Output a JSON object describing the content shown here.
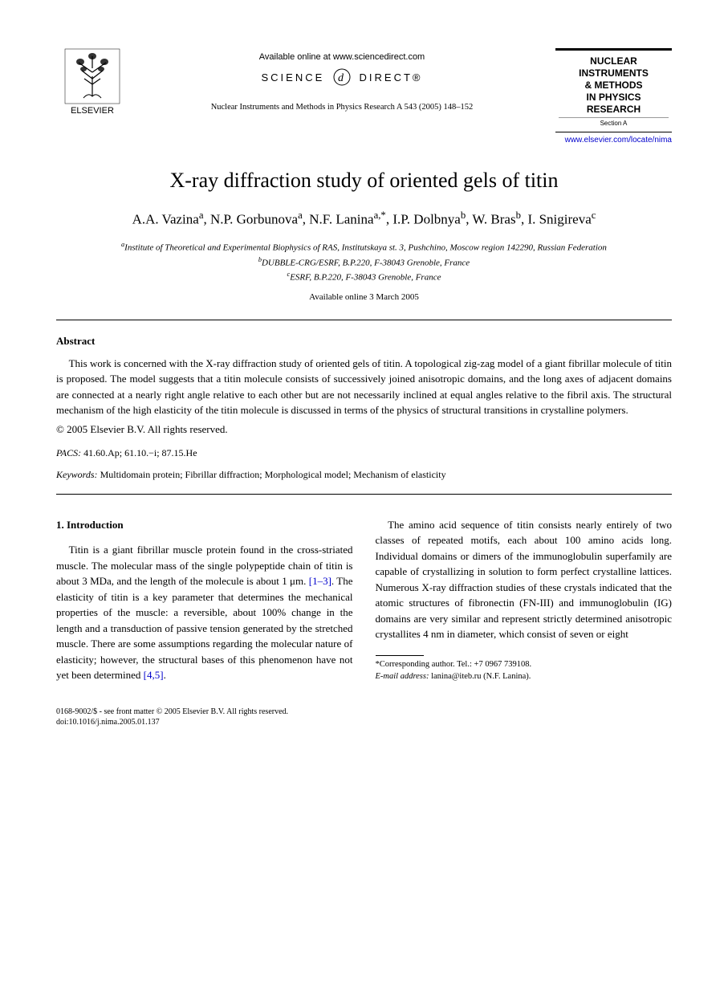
{
  "header": {
    "publisher_name": "ELSEVIER",
    "available_online": "Available online at www.sciencedirect.com",
    "science_direct_left": "SCIENCE",
    "science_direct_right": "DIRECT®",
    "journal_ref": "Nuclear Instruments and Methods in Physics Research A 543 (2005) 148–152",
    "badge_line1": "NUCLEAR",
    "badge_line2": "INSTRUMENTS",
    "badge_line3": "& METHODS",
    "badge_line4": "IN PHYSICS",
    "badge_line5": "RESEARCH",
    "badge_section": "Section A",
    "journal_link": "www.elsevier.com/locate/nima"
  },
  "paper": {
    "title": "X-ray diffraction study of oriented gels of titin",
    "authors_html": "A.A. Vazina<sup>a</sup>, N.P. Gorbunova<sup>a</sup>, N.F. Lanina<sup>a,*</sup>, I.P. Dolbnya<sup>b</sup>, W. Bras<sup>b</sup>, I. Snigireva<sup>c</sup>",
    "affil_a": "Institute of Theoretical and Experimental Biophysics of RAS, Institutskaya st. 3, Pushchino, Moscow region 142290, Russian Federation",
    "affil_b": "DUBBLE-CRG/ESRF, B.P.220, F-38043 Grenoble, France",
    "affil_c": "ESRF, B.P.220, F-38043 Grenoble, France",
    "pub_date": "Available online 3 March 2005"
  },
  "abstract": {
    "heading": "Abstract",
    "text": "This work is concerned with the X-ray diffraction study of oriented gels of titin. A topological zig-zag model of a giant fibrillar molecule of titin is proposed. The model suggests that a titin molecule consists of successively joined anisotropic domains, and the long axes of adjacent domains are connected at a nearly right angle relative to each other but are not necessarily inclined at equal angles relative to the fibril axis. The structural mechanism of the high elasticity of the titin molecule is discussed in terms of the physics of structural transitions in crystalline polymers.",
    "copyright": "© 2005 Elsevier B.V. All rights reserved.",
    "pacs_label": "PACS:",
    "pacs": " 41.60.Ap; 61.10.−i; 87.15.He",
    "keywords_label": "Keywords:",
    "keywords": " Multidomain protein; Fibrillar diffraction; Morphological model; Mechanism of elasticity"
  },
  "body": {
    "section_heading": "1.  Introduction",
    "para1_a": "Titin is a giant fibrillar muscle protein found in the cross-striated muscle. The molecular mass of the single polypeptide chain of titin is about 3 MDa, and the length of the molecule is about 1 μm. ",
    "ref1": "[1–3]",
    "para1_b": ". The elasticity of titin is a key parameter that determines the mechanical properties of the muscle: a reversible, about 100% change in the length and a transduction of passive tension generated by the stretched muscle. There are some assumptions regarding the molecular nature of elasticity; however, the structural bases of this phenomenon have not yet been determined ",
    "ref2": "[4,5]",
    "para1_c": ".",
    "para2": "The amino acid sequence of titin consists nearly entirely of two classes of repeated motifs, each about 100 amino acids long. Individual domains or dimers of the immunoglobulin superfamily are capable of crystallizing in solution to form perfect crystalline lattices. Numerous X-ray diffraction studies of these crystals indicated that the atomic structures of fibronectin (FN-III) and immunoglobulin (IG) domains are very similar and represent strictly determined anisotropic crystallites 4 nm in diameter, which consist of seven or eight"
  },
  "footnote": {
    "corr_label": "*Corresponding author. Tel.: ",
    "corr_tel": "+7 0967 739108.",
    "email_label": "E-mail address:",
    "email": " lanina@iteb.ru (N.F. Lanina)."
  },
  "footer": {
    "line1": "0168-9002/$ - see front matter © 2005 Elsevier B.V. All rights reserved.",
    "line2": "doi:10.1016/j.nima.2005.01.137"
  },
  "colors": {
    "text": "#000000",
    "link": "#0000cc",
    "background": "#ffffff"
  },
  "typography": {
    "title_fontsize": 26,
    "author_fontsize": 17,
    "body_fontsize": 13,
    "affil_fontsize": 11,
    "footnote_fontsize": 10.5,
    "footer_fontsize": 10
  }
}
